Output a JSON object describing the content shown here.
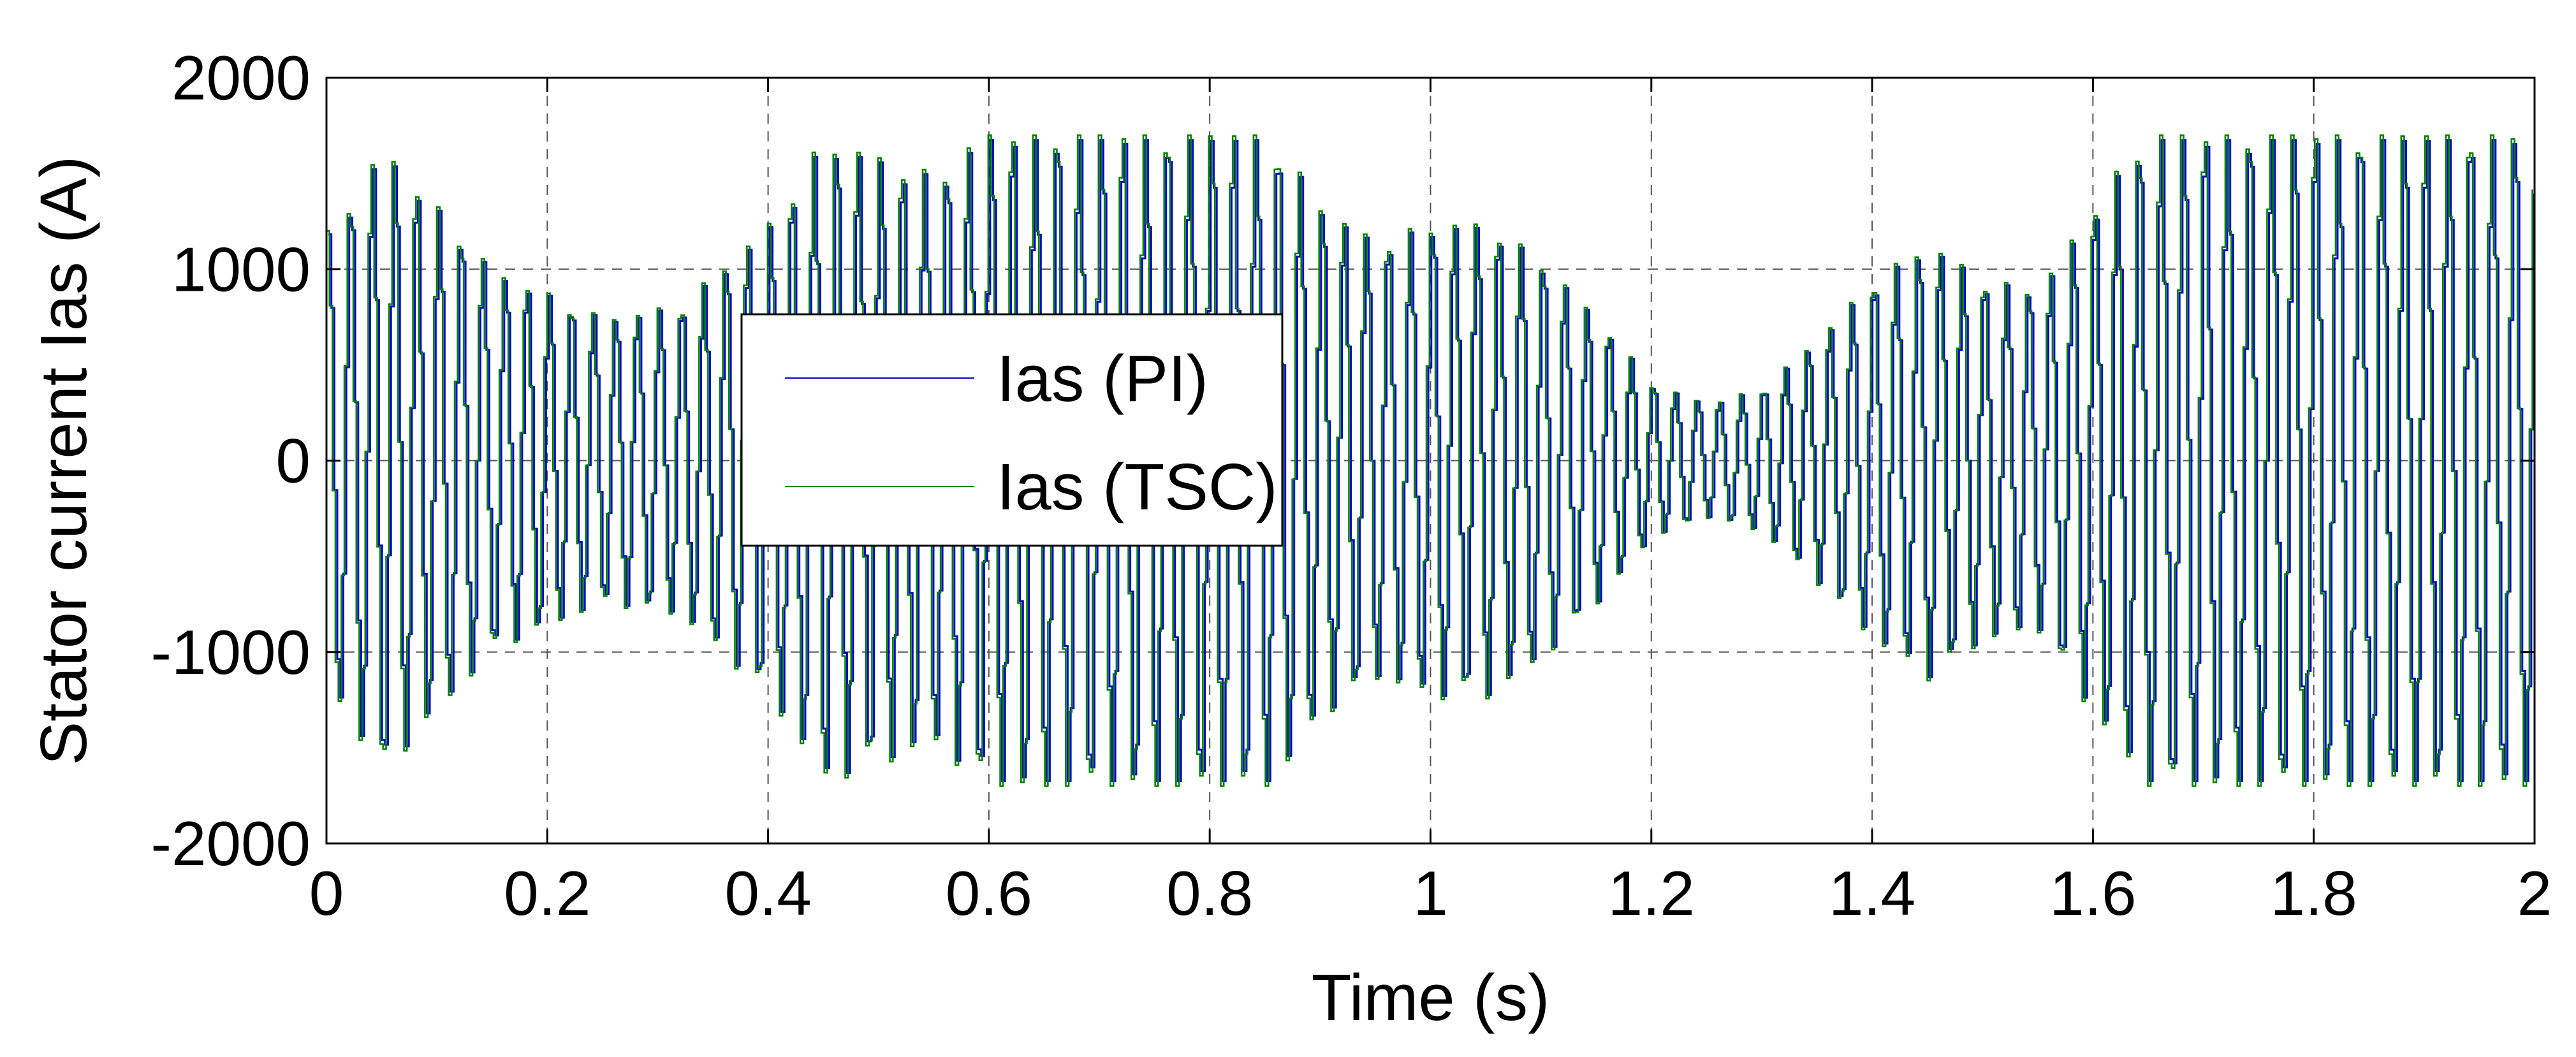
{
  "chart_data": {
    "type": "line",
    "title": "",
    "xlabel": "Time (s)",
    "ylabel": "Stator current Ias (A)",
    "xlim": [
      0,
      2
    ],
    "ylim": [
      -2000,
      2000
    ],
    "x_ticks": [
      0,
      0.2,
      0.4,
      0.6,
      0.8,
      1,
      1.2,
      1.4,
      1.6,
      1.8,
      2
    ],
    "x_tick_labels": [
      "0",
      "0.2",
      "0.4",
      "0.6",
      "0.8",
      "1",
      "1.2",
      "1.4",
      "1.6",
      "1.8",
      "2"
    ],
    "y_ticks": [
      2000,
      1000,
      0,
      -1000,
      -2000
    ],
    "y_tick_labels": [
      "2000",
      "1000",
      "0",
      "-1000",
      "-2000"
    ],
    "grid": true,
    "legend_position": "center-left",
    "signal": {
      "frequency_hz": 50,
      "clip_level": 1700,
      "envelope_x": [
        0,
        0.05,
        0.15,
        0.25,
        0.32,
        0.4,
        0.45,
        0.55,
        0.6,
        0.7,
        0.8,
        0.85,
        0.9,
        0.95,
        1.0,
        1.05,
        1.1,
        1.15,
        1.2,
        1.25,
        1.3,
        1.35,
        1.4,
        1.45,
        1.5,
        1.55,
        1.6,
        1.65,
        1.8,
        2.0
      ],
      "envelope_y": [
        1200,
        1650,
        1000,
        750,
        820,
        1250,
        1700,
        1500,
        1750,
        1750,
        1750,
        1750,
        1350,
        1150,
        1250,
        1250,
        1050,
        750,
        400,
        300,
        380,
        650,
        950,
        1150,
        950,
        900,
        1350,
        1750,
        1750,
        1750
      ]
    },
    "series": [
      {
        "name": "Ias (PI)",
        "color": "#0000cc"
      },
      {
        "name": "Ias (TSC)",
        "color": "#008000"
      }
    ]
  }
}
